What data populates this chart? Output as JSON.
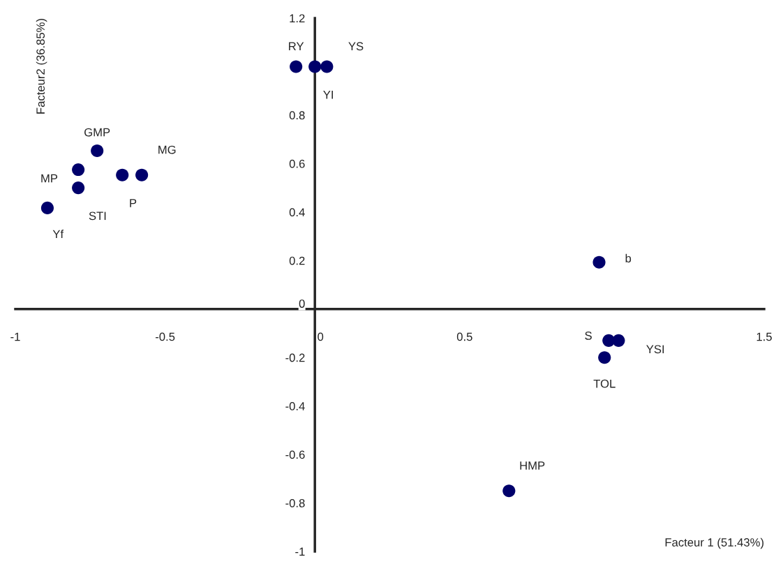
{
  "chart_data": {
    "type": "scatter",
    "xlabel": "Facteur 1 (51.43%)",
    "ylabel": "Facteur2 (36.85%)",
    "x": [
      -0.063,
      0.0,
      0.04,
      -0.727,
      -0.79,
      -0.79,
      -0.643,
      -0.578,
      -0.893,
      0.949,
      0.981,
      1.014,
      0.967,
      0.648
    ],
    "values": [
      1.0,
      1.0,
      1.0,
      0.653,
      0.575,
      0.5,
      0.553,
      0.553,
      0.417,
      0.193,
      -0.13,
      -0.13,
      -0.2,
      -0.75
    ],
    "color": "#00006b",
    "marker": "circle",
    "grid": false,
    "xlim": [
      -1,
      1.5
    ],
    "xticks": [
      -1,
      -0.5,
      0,
      0.5,
      1.5
    ],
    "ylim": [
      -1,
      1.2
    ],
    "yticks": [
      -1,
      -0.8,
      -0.6,
      -0.4,
      -0.2,
      0,
      0.2,
      0.4,
      0.6,
      0.8,
      1.2
    ],
    "annotations": [
      {
        "text": "RY",
        "x": -0.063,
        "y": 1.0
      },
      {
        "text": "YI",
        "x": 0.0,
        "y": 1.0
      },
      {
        "text": "YS",
        "x": 0.04,
        "y": 1.0
      },
      {
        "text": "GMP",
        "x": -0.727,
        "y": 0.653
      },
      {
        "text": "MP",
        "x": -0.79,
        "y": 0.575
      },
      {
        "text": "STI",
        "x": -0.79,
        "y": 0.5
      },
      {
        "text": "P",
        "x": -0.643,
        "y": 0.553
      },
      {
        "text": "MG",
        "x": -0.578,
        "y": 0.553
      },
      {
        "text": "Yf",
        "x": -0.893,
        "y": 0.417
      },
      {
        "text": "b",
        "x": 0.949,
        "y": 0.193
      },
      {
        "text": "S",
        "x": 0.981,
        "y": -0.13
      },
      {
        "text": "YSI",
        "x": 1.014,
        "y": -0.13
      },
      {
        "text": "TOL",
        "x": 0.967,
        "y": -0.2
      },
      {
        "text": "HMP",
        "x": 0.648,
        "y": -0.75
      }
    ]
  }
}
